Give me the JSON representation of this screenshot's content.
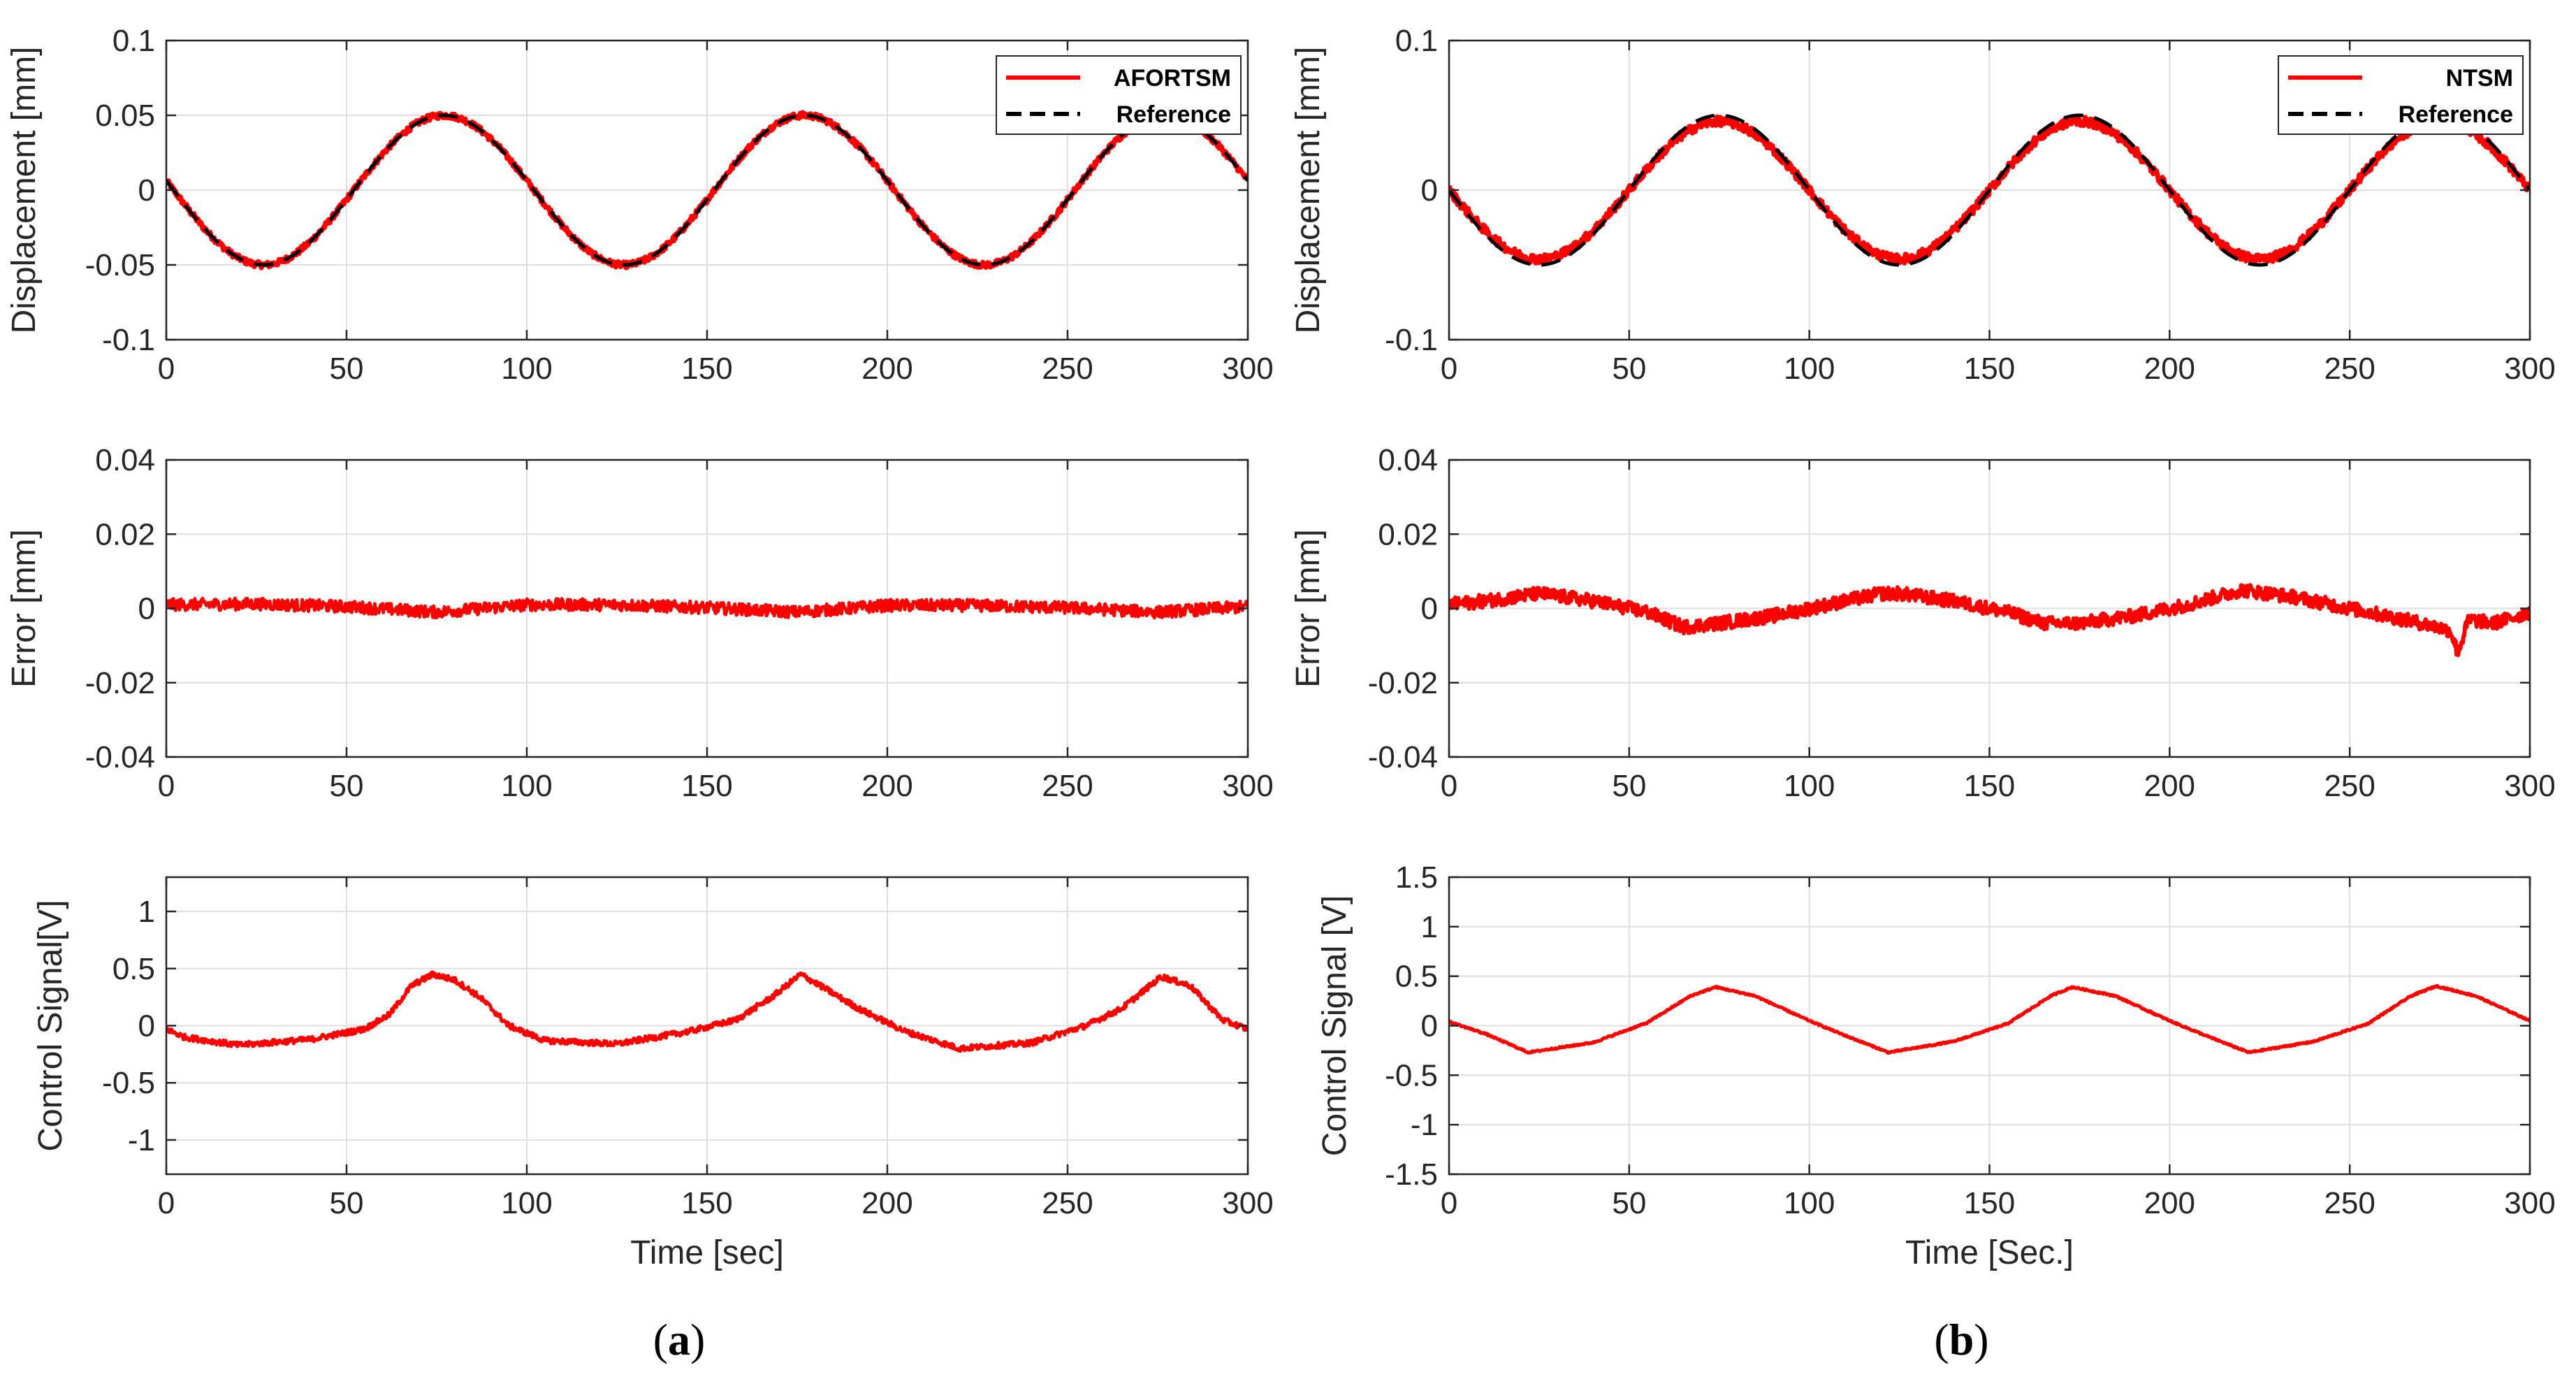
{
  "colors": {
    "controller": "#ff0000",
    "reference": "#000000",
    "grid": "#dfdfdf",
    "axis": "#262626"
  },
  "columns": [
    {
      "caption_letter": "a",
      "controller_name": "AFORTSM",
      "time_label": "Time [sec]"
    },
    {
      "caption_letter": "b",
      "controller_name": "NTSM",
      "time_label": "Time [Sec.]"
    }
  ],
  "chart_data": [
    {
      "id": "a-displacement",
      "type": "line",
      "xlabel": "",
      "ylabel": "Displacement [mm]",
      "xlim": [
        0,
        300
      ],
      "ylim": [
        -0.1,
        0.1
      ],
      "xticks": [
        0,
        50,
        100,
        150,
        200,
        250,
        300
      ],
      "xtick_labels": [
        "0",
        "50",
        "100",
        "150",
        "200",
        "250",
        "300"
      ],
      "yticks": [
        -0.1,
        -0.05,
        0,
        0.05,
        0.1
      ],
      "ytick_labels": [
        "-0.1",
        "-0.05",
        "0",
        "0.05",
        "0.1"
      ],
      "grid": true,
      "legend": {
        "position": "top-right",
        "entries": [
          "AFORTSM",
          "Reference"
        ]
      },
      "series": [
        {
          "name": "AFORTSM",
          "style": "solid",
          "color": "#ff0000",
          "kind": "sine",
          "amplitude": 0.05,
          "period": 100,
          "phase_zero": 2,
          "start_sign": -1,
          "noise": 0.002,
          "width": 7
        },
        {
          "name": "Reference",
          "style": "dashed",
          "color": "#000000",
          "kind": "sine",
          "amplitude": 0.05,
          "period": 100,
          "phase_zero": 2,
          "start_sign": -1,
          "noise": 0,
          "width": 5
        }
      ]
    },
    {
      "id": "a-error",
      "type": "line",
      "xlabel": "",
      "ylabel": "Error [mm]",
      "xlim": [
        0,
        300
      ],
      "ylim": [
        -0.04,
        0.04
      ],
      "xticks": [
        0,
        50,
        100,
        150,
        200,
        250,
        300
      ],
      "xtick_labels": [
        "0",
        "50",
        "100",
        "150",
        "200",
        "250",
        "300"
      ],
      "yticks": [
        -0.04,
        -0.02,
        0,
        0.02,
        0.04
      ],
      "ytick_labels": [
        "-0.04",
        "-0.02",
        "0",
        "0.02",
        "0.04"
      ],
      "grid": true,
      "series": [
        {
          "name": "Error",
          "style": "solid",
          "color": "#ff0000",
          "kind": "points",
          "noise": 0.0016,
          "width": 5,
          "x": [
            0,
            25,
            50,
            75,
            100,
            125,
            150,
            175,
            200,
            225,
            250,
            275,
            300
          ],
          "y": [
            0.001,
            0.0012,
            0.0005,
            -0.001,
            0.001,
            0.001,
            0.0002,
            -0.001,
            0.0008,
            0.0008,
            0.0002,
            -0.001,
            0.0005
          ]
        }
      ]
    },
    {
      "id": "a-control",
      "type": "line",
      "xlabel": "Time [sec]",
      "ylabel": "Control Signal[V]",
      "xlim": [
        0,
        300
      ],
      "ylim": [
        -1.3,
        1.3
      ],
      "xticks": [
        0,
        50,
        100,
        150,
        200,
        250,
        300
      ],
      "xtick_labels": [
        "0",
        "50",
        "100",
        "150",
        "200",
        "250",
        "300"
      ],
      "yticks": [
        -1,
        -0.5,
        0,
        0.5,
        1
      ],
      "ytick_labels": [
        "-1",
        "-0.5",
        "0",
        "0.5",
        "1"
      ],
      "grid": true,
      "series": [
        {
          "name": "Control Signal",
          "style": "solid",
          "color": "#ff0000",
          "kind": "points",
          "noise": 0.025,
          "width": 5,
          "x": [
            0,
            5,
            20,
            40,
            55,
            62,
            68,
            74,
            80,
            87,
            95,
            105,
            125,
            145,
            158,
            168,
            176,
            183,
            192,
            205,
            220,
            240,
            255,
            265,
            276,
            284,
            293,
            300
          ],
          "y": [
            -0.03,
            -0.1,
            -0.17,
            -0.12,
            -0.03,
            0.1,
            0.35,
            0.45,
            0.4,
            0.25,
            0.0,
            -0.13,
            -0.16,
            -0.05,
            0.05,
            0.25,
            0.45,
            0.32,
            0.15,
            -0.05,
            -0.2,
            -0.15,
            0.0,
            0.15,
            0.43,
            0.35,
            0.05,
            -0.03
          ]
        }
      ]
    },
    {
      "id": "b-displacement",
      "type": "line",
      "xlabel": "",
      "ylabel": "Displacement [mm]",
      "xlim": [
        0,
        300
      ],
      "ylim": [
        -0.1,
        0.1
      ],
      "xticks": [
        0,
        50,
        100,
        150,
        200,
        250,
        300
      ],
      "xtick_labels": [
        "0",
        "50",
        "100",
        "150",
        "200",
        "250",
        "300"
      ],
      "yticks": [
        -0.1,
        0,
        0.1
      ],
      "ytick_labels": [
        "-0.1",
        "0",
        "0.1"
      ],
      "grid": true,
      "legend": {
        "position": "top-right",
        "entries": [
          "NTSM",
          "Reference"
        ]
      },
      "series": [
        {
          "name": "NTSM",
          "style": "solid",
          "color": "#ff0000",
          "kind": "sine",
          "amplitude": 0.046,
          "period": 100,
          "phase_zero": 0,
          "start_sign": -1,
          "noise": 0.003,
          "width": 7
        },
        {
          "name": "Reference",
          "style": "dashed",
          "color": "#000000",
          "kind": "sine",
          "amplitude": 0.05,
          "period": 100,
          "phase_zero": 0,
          "start_sign": -1,
          "noise": 0,
          "width": 5
        }
      ]
    },
    {
      "id": "b-error",
      "type": "line",
      "xlabel": "",
      "ylabel": "Error [mm]",
      "xlim": [
        0,
        300
      ],
      "ylim": [
        -0.04,
        0.04
      ],
      "xticks": [
        0,
        50,
        100,
        150,
        200,
        250,
        300
      ],
      "xtick_labels": [
        "0",
        "50",
        "100",
        "150",
        "200",
        "250",
        "300"
      ],
      "yticks": [
        -0.04,
        -0.02,
        0,
        0.02,
        0.04
      ],
      "ytick_labels": [
        "-0.04",
        "-0.02",
        "0",
        "0.02",
        "0.04"
      ],
      "grid": true,
      "series": [
        {
          "name": "Error",
          "style": "solid",
          "color": "#ff0000",
          "kind": "points",
          "noise": 0.0018,
          "width": 6,
          "x": [
            0,
            10,
            25,
            40,
            55,
            65,
            75,
            90,
            105,
            120,
            125,
            140,
            155,
            165,
            175,
            190,
            205,
            220,
            235,
            250,
            260,
            270,
            278,
            280,
            283,
            290,
            300
          ],
          "y": [
            0.001,
            0.002,
            0.004,
            0.002,
            -0.001,
            -0.005,
            -0.004,
            -0.002,
            0.001,
            0.004,
            0.004,
            0.002,
            -0.001,
            -0.004,
            -0.004,
            -0.002,
            0.001,
            0.005,
            0.003,
            0.0,
            -0.002,
            -0.004,
            -0.006,
            -0.012,
            -0.003,
            -0.004,
            -0.001
          ]
        }
      ]
    },
    {
      "id": "b-control",
      "type": "line",
      "xlabel": "Time [Sec.]",
      "ylabel": "Control Signal [V]",
      "xlim": [
        0,
        300
      ],
      "ylim": [
        -1.5,
        1.5
      ],
      "xticks": [
        0,
        50,
        100,
        150,
        200,
        250,
        300
      ],
      "xtick_labels": [
        "0",
        "50",
        "100",
        "150",
        "200",
        "250",
        "300"
      ],
      "yticks": [
        -1.5,
        -1,
        -0.5,
        0,
        0.5,
        1,
        1.5
      ],
      "ytick_labels": [
        "-1.5",
        "-1",
        "-0.5",
        "0",
        "0.5",
        "1",
        "1.5"
      ],
      "grid": true,
      "series": [
        {
          "name": "Control Signal",
          "style": "solid",
          "color": "#ff0000",
          "kind": "points",
          "noise": 0.008,
          "width": 5,
          "x": [
            0,
            10,
            22,
            40,
            55,
            67,
            74,
            85,
            100,
            110,
            122,
            140,
            155,
            167,
            173,
            185,
            200,
            210,
            222,
            240,
            255,
            267,
            274,
            285,
            300
          ],
          "y": [
            0.04,
            -0.08,
            -0.27,
            -0.17,
            0.03,
            0.3,
            0.39,
            0.3,
            0.05,
            -0.1,
            -0.27,
            -0.16,
            0.02,
            0.3,
            0.39,
            0.3,
            0.05,
            -0.1,
            -0.27,
            -0.16,
            0.02,
            0.3,
            0.4,
            0.3,
            0.05
          ]
        }
      ]
    }
  ]
}
